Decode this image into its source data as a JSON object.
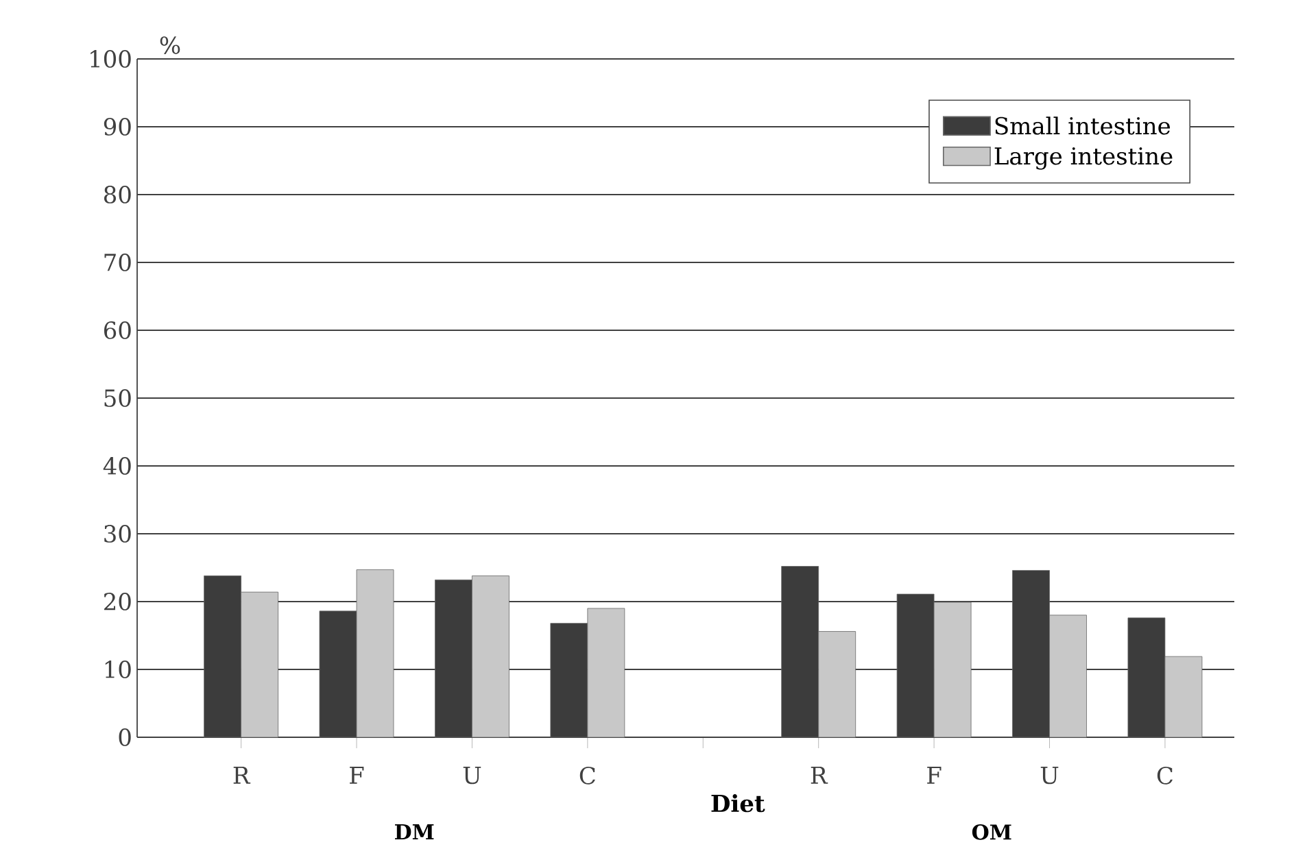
{
  "chart_data": {
    "type": "bar",
    "categories": [
      "R",
      "F",
      "U",
      "C",
      null,
      "R",
      "F",
      "U",
      "C"
    ],
    "series": [
      {
        "name": "Small intestine",
        "color": "#3c3c3c",
        "values": [
          23.8,
          18.6,
          23.2,
          16.8,
          null,
          25.2,
          21.1,
          24.6,
          17.6
        ]
      },
      {
        "name": "Large intestine",
        "color": "#c8c8c8",
        "values": [
          21.4,
          24.7,
          23.8,
          19.0,
          null,
          15.6,
          19.9,
          18.0,
          11.9
        ]
      }
    ],
    "xlabel": "Diet",
    "ylabel": "%",
    "annotations": [
      "DM",
      "OM"
    ],
    "ylim": [
      0,
      100
    ],
    "yticks": [
      0,
      10,
      20,
      30,
      40,
      50,
      60,
      70,
      80,
      90,
      100
    ],
    "grid": "y",
    "legend": "top right"
  }
}
